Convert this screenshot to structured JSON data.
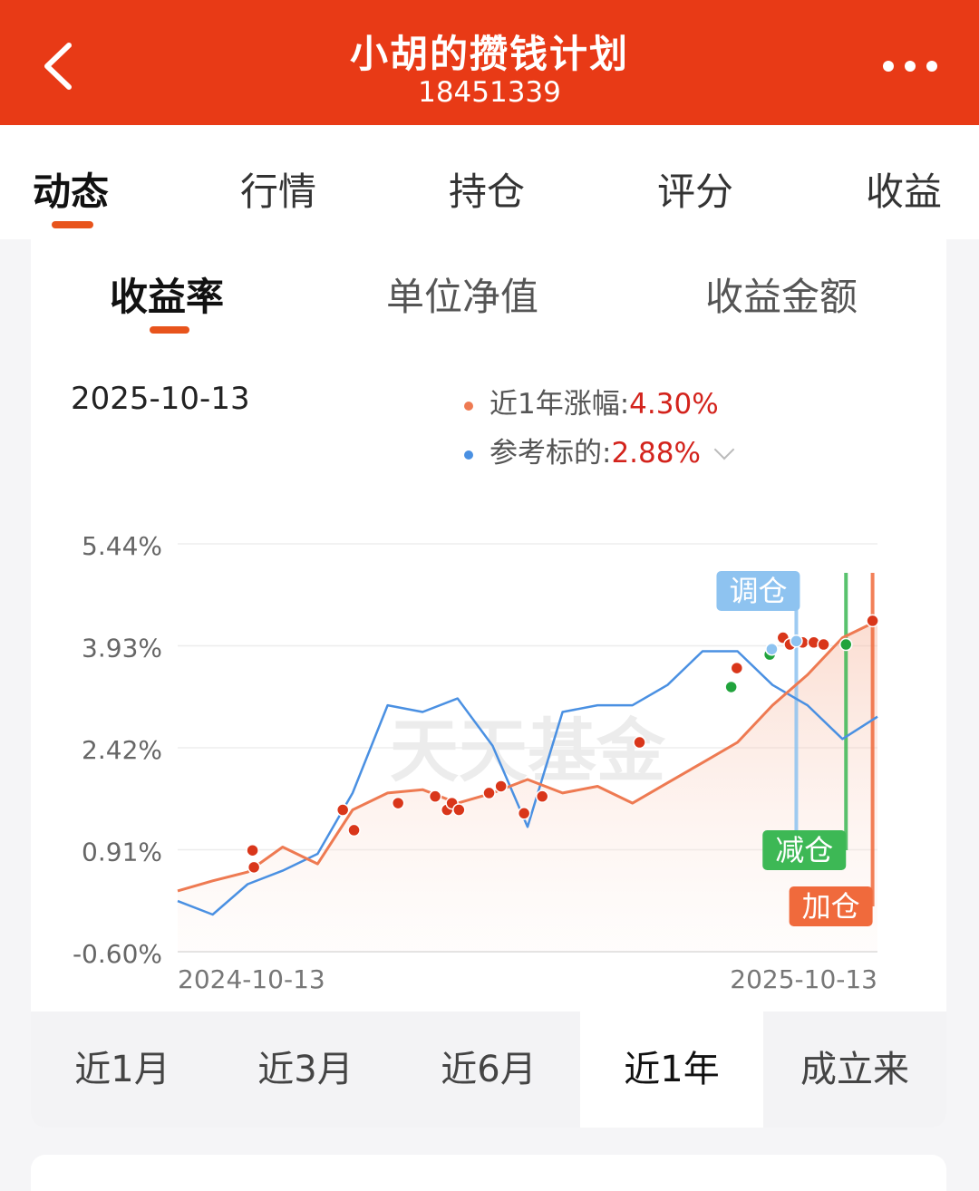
{
  "header": {
    "title": "小胡的攒钱计划",
    "subtitle": "18451339"
  },
  "tabs": [
    "动态",
    "行情",
    "持仓",
    "评分",
    "收益"
  ],
  "active_tab": "动态",
  "subtabs": [
    "收益率",
    "单位净值",
    "收益金额"
  ],
  "active_subtab": "收益率",
  "summary": {
    "date": "2025-10-13",
    "legend": [
      {
        "label": "近1年涨幅:",
        "value": "4.30%",
        "color": "#ee7a52"
      },
      {
        "label": "参考标的:",
        "value": "2.88%",
        "color": "#4a90e2"
      }
    ]
  },
  "chart_data": {
    "type": "line",
    "watermark": "天天基金",
    "y_ticks": [
      "5.44%",
      "3.93%",
      "2.42%",
      "0.91%",
      "-0.60%"
    ],
    "ylim": [
      -0.6,
      5.44
    ],
    "x_tick_labels": [
      "2024-10-13",
      "2025-10-13"
    ],
    "x": [
      0,
      5,
      10,
      15,
      20,
      25,
      30,
      35,
      40,
      45,
      50,
      55,
      60,
      65,
      70,
      75,
      80,
      85,
      90,
      95,
      100
    ],
    "series": [
      {
        "color": "#ee7a52",
        "values": [
          0.3,
          0.45,
          0.58,
          0.95,
          0.7,
          1.5,
          1.75,
          1.8,
          1.6,
          1.75,
          1.95,
          1.75,
          1.85,
          1.6,
          1.9,
          2.2,
          2.5,
          3.05,
          3.5,
          4.05,
          4.3
        ]
      },
      {
        "color": "#4a90e2",
        "values": [
          0.15,
          -0.05,
          0.4,
          0.6,
          0.85,
          1.75,
          3.05,
          2.95,
          3.15,
          2.45,
          1.25,
          2.95,
          3.05,
          3.05,
          3.35,
          3.85,
          3.85,
          3.35,
          3.05,
          2.55,
          2.88
        ]
      }
    ],
    "markers": [
      {
        "x": 10.7,
        "y": 0.9,
        "type": "buy"
      },
      {
        "x": 10.9,
        "y": 0.65,
        "type": "buy"
      },
      {
        "x": 23.6,
        "y": 1.5,
        "type": "buy"
      },
      {
        "x": 25.2,
        "y": 1.2,
        "type": "buy"
      },
      {
        "x": 31.5,
        "y": 1.6,
        "type": "buy"
      },
      {
        "x": 36.8,
        "y": 1.7,
        "type": "buy"
      },
      {
        "x": 38.5,
        "y": 1.5,
        "type": "buy"
      },
      {
        "x": 39.2,
        "y": 1.6,
        "type": "buy"
      },
      {
        "x": 40.2,
        "y": 1.5,
        "type": "buy"
      },
      {
        "x": 44.5,
        "y": 1.75,
        "type": "buy"
      },
      {
        "x": 46.2,
        "y": 1.85,
        "type": "buy"
      },
      {
        "x": 49.5,
        "y": 1.45,
        "type": "buy"
      },
      {
        "x": 52.1,
        "y": 1.7,
        "type": "buy"
      },
      {
        "x": 66.0,
        "y": 2.5,
        "type": "buy"
      },
      {
        "x": 79.9,
        "y": 3.6,
        "type": "buy"
      },
      {
        "x": 86.5,
        "y": 4.05,
        "type": "buy"
      },
      {
        "x": 87.5,
        "y": 3.95,
        "type": "buy"
      },
      {
        "x": 89.3,
        "y": 3.98,
        "type": "buy"
      },
      {
        "x": 90.9,
        "y": 3.98,
        "type": "buy"
      },
      {
        "x": 92.3,
        "y": 3.95,
        "type": "buy"
      },
      {
        "x": 99.3,
        "y": 4.3,
        "type": "buy"
      },
      {
        "x": 79.1,
        "y": 3.32,
        "type": "sell"
      },
      {
        "x": 84.6,
        "y": 3.8,
        "type": "sell"
      },
      {
        "x": 95.5,
        "y": 3.95,
        "type": "sell"
      },
      {
        "x": 84.9,
        "y": 3.88,
        "type": "adjust"
      },
      {
        "x": 88.4,
        "y": 4.0,
        "type": "adjust"
      }
    ],
    "callouts": [
      {
        "label": "调仓",
        "type": "adjust",
        "x": 88.4
      },
      {
        "label": "减仓",
        "type": "sell",
        "x": 95.5
      },
      {
        "label": "加仓",
        "type": "buy",
        "x": 99.3
      }
    ],
    "marker_colors": {
      "buy": "#d9361a",
      "sell": "#21a33c",
      "adjust": "#8ec3f0"
    },
    "callout_colors": {
      "buy": "#f06a3c",
      "sell": "#3db855",
      "adjust": "#8ec3f0"
    },
    "grid": true
  },
  "ranges": [
    "近1月",
    "近3月",
    "近6月",
    "近1年",
    "成立来"
  ],
  "active_range": "近1年"
}
